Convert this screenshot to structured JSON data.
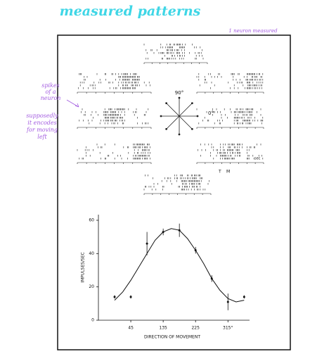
{
  "notes": {
    "title": "measured patterns",
    "top_right": "1 neuron measured",
    "spikes": [
      "spikes",
      "of a",
      "neuron"
    ],
    "encodes": [
      "supposedly",
      "it encodes",
      "for moving",
      "left"
    ]
  },
  "figure": {
    "angle_90": "90°",
    "angle_0": "0°",
    "t_label": "T",
    "m_label": "M",
    "time_label": "sec"
  },
  "chart_data": {
    "type": "scatter",
    "ylabel": "IMPULSES/SEC",
    "xlabel": "DIRECTION OF MOVEMENT",
    "x": [
      0,
      45,
      90,
      135,
      180,
      225,
      270,
      315,
      360
    ],
    "values": [
      14,
      14,
      46,
      53,
      54,
      42,
      25,
      11,
      14
    ],
    "errors": [
      1,
      1,
      7,
      2,
      4,
      2,
      2,
      5,
      1
    ],
    "fit": {
      "x": [
        0,
        22.5,
        45,
        67.5,
        90,
        112.5,
        135,
        157.5,
        180,
        202.5,
        225,
        247.5,
        270,
        292.5,
        315,
        337.5,
        360
      ],
      "values": [
        12,
        17,
        24,
        32,
        40,
        48,
        53,
        55,
        54,
        49,
        42,
        34,
        25,
        18,
        13,
        11,
        12
      ]
    },
    "color": "#111111",
    "xlim": [
      -45,
      375
    ],
    "ylim": [
      0,
      60
    ],
    "xticks": [
      45,
      135,
      225,
      {
        "value": 315,
        "label": "315°"
      }
    ],
    "yticks": [
      0,
      20,
      40,
      60
    ]
  }
}
